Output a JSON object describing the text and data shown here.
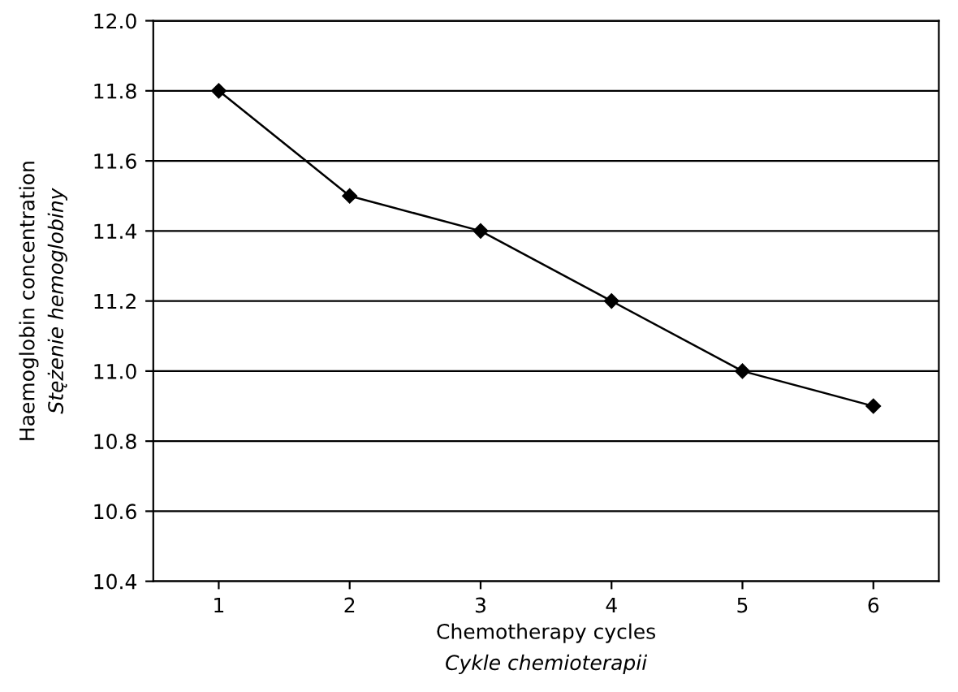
{
  "chart_data": {
    "type": "line",
    "xlabel": "Chemotherapy cycles\nCykle chemioterapii",
    "ylabel": "Haemoglobin concentration\nStężenie hemoglobiny",
    "categories": [
      "1",
      "2",
      "3",
      "4",
      "5",
      "6"
    ],
    "series": [
      {
        "color": "#000000",
        "values": [
          11.8,
          11.5,
          11.4,
          11.2,
          11.0,
          10.9
        ]
      }
    ],
    "ylim": [
      10.4,
      12.0
    ],
    "yticks": [
      10.4,
      10.6,
      10.8,
      {
        "value": 11,
        "label": "11.0"
      },
      11.2,
      11.4,
      11.6,
      11.8,
      {
        "value": 12,
        "label": "12.0"
      }
    ],
    "grid": "y",
    "marker": "diamond",
    "line_style": "solid"
  }
}
